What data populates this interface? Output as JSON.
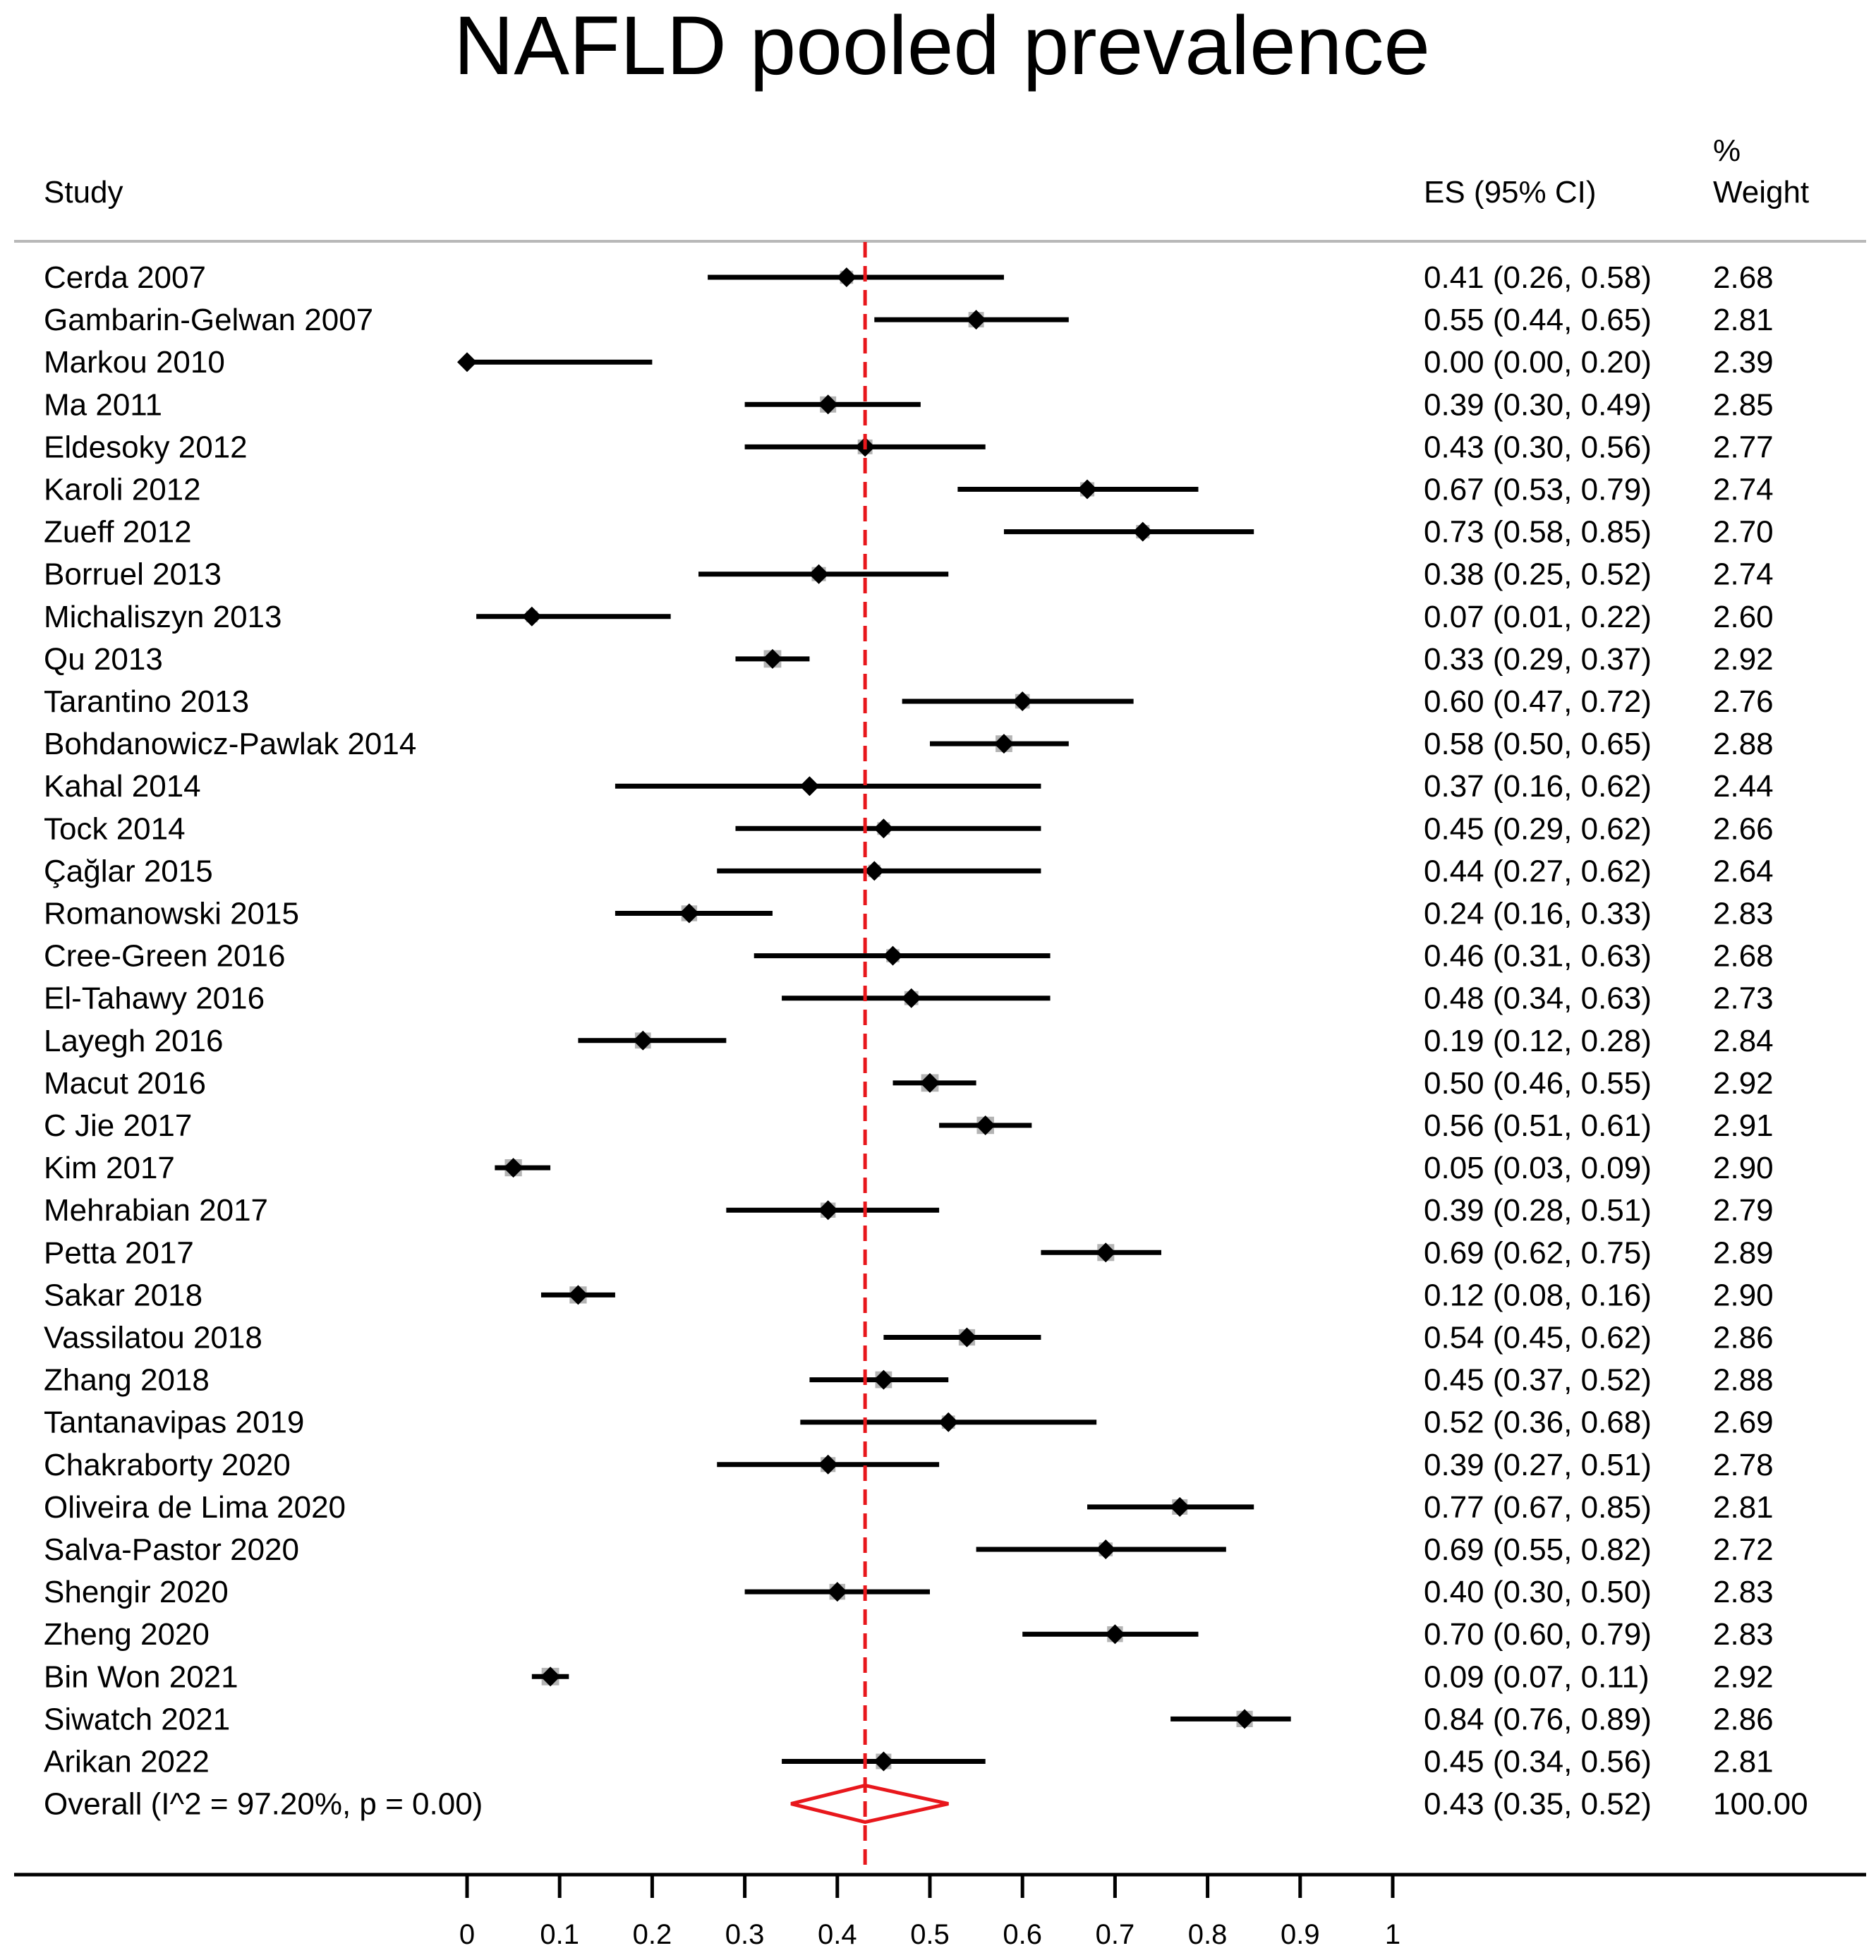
{
  "chart_data": {
    "type": "forest",
    "title": "NAFLD pooled prevalence",
    "columns": {
      "study": "Study",
      "es": "ES (95% CI)",
      "weight_top": "%",
      "weight": "Weight"
    },
    "studies": [
      {
        "name": "Cerda 2007",
        "es": 0.41,
        "lo": 0.26,
        "hi": 0.58,
        "es_text": "0.41 (0.26, 0.58)",
        "weight": 2.68,
        "weight_text": "2.68"
      },
      {
        "name": "Gambarin-Gelwan 2007",
        "es": 0.55,
        "lo": 0.44,
        "hi": 0.65,
        "es_text": "0.55 (0.44, 0.65)",
        "weight": 2.81,
        "weight_text": "2.81"
      },
      {
        "name": "Markou 2010",
        "es": 0.0,
        "lo": 0.0,
        "hi": 0.2,
        "es_text": "0.00 (0.00, 0.20)",
        "weight": 2.39,
        "weight_text": "2.39"
      },
      {
        "name": "Ma 2011",
        "es": 0.39,
        "lo": 0.3,
        "hi": 0.49,
        "es_text": "0.39 (0.30, 0.49)",
        "weight": 2.85,
        "weight_text": "2.85"
      },
      {
        "name": "Eldesoky 2012",
        "es": 0.43,
        "lo": 0.3,
        "hi": 0.56,
        "es_text": "0.43 (0.30, 0.56)",
        "weight": 2.77,
        "weight_text": "2.77"
      },
      {
        "name": "Karoli 2012",
        "es": 0.67,
        "lo": 0.53,
        "hi": 0.79,
        "es_text": "0.67 (0.53, 0.79)",
        "weight": 2.74,
        "weight_text": "2.74"
      },
      {
        "name": "Zueff 2012",
        "es": 0.73,
        "lo": 0.58,
        "hi": 0.85,
        "es_text": "0.73 (0.58, 0.85)",
        "weight": 2.7,
        "weight_text": "2.70"
      },
      {
        "name": "Borruel 2013",
        "es": 0.38,
        "lo": 0.25,
        "hi": 0.52,
        "es_text": "0.38 (0.25, 0.52)",
        "weight": 2.74,
        "weight_text": "2.74"
      },
      {
        "name": "Michaliszyn 2013",
        "es": 0.07,
        "lo": 0.01,
        "hi": 0.22,
        "es_text": "0.07 (0.01, 0.22)",
        "weight": 2.6,
        "weight_text": "2.60"
      },
      {
        "name": "Qu 2013",
        "es": 0.33,
        "lo": 0.29,
        "hi": 0.37,
        "es_text": "0.33 (0.29, 0.37)",
        "weight": 2.92,
        "weight_text": "2.92"
      },
      {
        "name": "Tarantino 2013",
        "es": 0.6,
        "lo": 0.47,
        "hi": 0.72,
        "es_text": "0.60 (0.47, 0.72)",
        "weight": 2.76,
        "weight_text": "2.76"
      },
      {
        "name": "Bohdanowicz-Pawlak 2014",
        "es": 0.58,
        "lo": 0.5,
        "hi": 0.65,
        "es_text": "0.58 (0.50, 0.65)",
        "weight": 2.88,
        "weight_text": "2.88"
      },
      {
        "name": "Kahal 2014",
        "es": 0.37,
        "lo": 0.16,
        "hi": 0.62,
        "es_text": "0.37 (0.16, 0.62)",
        "weight": 2.44,
        "weight_text": "2.44"
      },
      {
        "name": "Tock 2014",
        "es": 0.45,
        "lo": 0.29,
        "hi": 0.62,
        "es_text": "0.45 (0.29, 0.62)",
        "weight": 2.66,
        "weight_text": "2.66"
      },
      {
        "name": "Çağlar 2015",
        "es": 0.44,
        "lo": 0.27,
        "hi": 0.62,
        "es_text": "0.44 (0.27, 0.62)",
        "weight": 2.64,
        "weight_text": "2.64"
      },
      {
        "name": "Romanowski 2015",
        "es": 0.24,
        "lo": 0.16,
        "hi": 0.33,
        "es_text": "0.24 (0.16, 0.33)",
        "weight": 2.83,
        "weight_text": "2.83"
      },
      {
        "name": "Cree-Green 2016",
        "es": 0.46,
        "lo": 0.31,
        "hi": 0.63,
        "es_text": "0.46 (0.31, 0.63)",
        "weight": 2.68,
        "weight_text": "2.68"
      },
      {
        "name": "El-Tahawy 2016",
        "es": 0.48,
        "lo": 0.34,
        "hi": 0.63,
        "es_text": "0.48 (0.34, 0.63)",
        "weight": 2.73,
        "weight_text": "2.73"
      },
      {
        "name": "Layegh 2016",
        "es": 0.19,
        "lo": 0.12,
        "hi": 0.28,
        "es_text": "0.19 (0.12, 0.28)",
        "weight": 2.84,
        "weight_text": "2.84"
      },
      {
        "name": "Macut 2016",
        "es": 0.5,
        "lo": 0.46,
        "hi": 0.55,
        "es_text": "0.50 (0.46, 0.55)",
        "weight": 2.92,
        "weight_text": "2.92"
      },
      {
        "name": "C Jie 2017",
        "es": 0.56,
        "lo": 0.51,
        "hi": 0.61,
        "es_text": "0.56 (0.51, 0.61)",
        "weight": 2.91,
        "weight_text": "2.91"
      },
      {
        "name": "Kim 2017",
        "es": 0.05,
        "lo": 0.03,
        "hi": 0.09,
        "es_text": "0.05 (0.03, 0.09)",
        "weight": 2.9,
        "weight_text": "2.90"
      },
      {
        "name": "Mehrabian 2017",
        "es": 0.39,
        "lo": 0.28,
        "hi": 0.51,
        "es_text": "0.39 (0.28, 0.51)",
        "weight": 2.79,
        "weight_text": "2.79"
      },
      {
        "name": "Petta 2017",
        "es": 0.69,
        "lo": 0.62,
        "hi": 0.75,
        "es_text": "0.69 (0.62, 0.75)",
        "weight": 2.89,
        "weight_text": "2.89"
      },
      {
        "name": "Sakar 2018",
        "es": 0.12,
        "lo": 0.08,
        "hi": 0.16,
        "es_text": "0.12 (0.08, 0.16)",
        "weight": 2.9,
        "weight_text": "2.90"
      },
      {
        "name": "Vassilatou 2018",
        "es": 0.54,
        "lo": 0.45,
        "hi": 0.62,
        "es_text": "0.54 (0.45, 0.62)",
        "weight": 2.86,
        "weight_text": "2.86"
      },
      {
        "name": "Zhang 2018",
        "es": 0.45,
        "lo": 0.37,
        "hi": 0.52,
        "es_text": "0.45 (0.37, 0.52)",
        "weight": 2.88,
        "weight_text": "2.88"
      },
      {
        "name": "Tantanavipas 2019",
        "es": 0.52,
        "lo": 0.36,
        "hi": 0.68,
        "es_text": "0.52 (0.36, 0.68)",
        "weight": 2.69,
        "weight_text": "2.69"
      },
      {
        "name": "Chakraborty 2020",
        "es": 0.39,
        "lo": 0.27,
        "hi": 0.51,
        "es_text": "0.39 (0.27, 0.51)",
        "weight": 2.78,
        "weight_text": "2.78"
      },
      {
        "name": "Oliveira de Lima 2020",
        "es": 0.77,
        "lo": 0.67,
        "hi": 0.85,
        "es_text": "0.77 (0.67, 0.85)",
        "weight": 2.81,
        "weight_text": "2.81"
      },
      {
        "name": "Salva-Pastor 2020",
        "es": 0.69,
        "lo": 0.55,
        "hi": 0.82,
        "es_text": "0.69 (0.55, 0.82)",
        "weight": 2.72,
        "weight_text": "2.72"
      },
      {
        "name": "Shengir 2020",
        "es": 0.4,
        "lo": 0.3,
        "hi": 0.5,
        "es_text": "0.40 (0.30, 0.50)",
        "weight": 2.83,
        "weight_text": "2.83"
      },
      {
        "name": "Zheng 2020",
        "es": 0.7,
        "lo": 0.6,
        "hi": 0.79,
        "es_text": "0.70 (0.60, 0.79)",
        "weight": 2.83,
        "weight_text": "2.83"
      },
      {
        "name": "Bin Won 2021",
        "es": 0.09,
        "lo": 0.07,
        "hi": 0.11,
        "es_text": "0.09 (0.07, 0.11)",
        "weight": 2.92,
        "weight_text": "2.92"
      },
      {
        "name": "Siwatch 2021",
        "es": 0.84,
        "lo": 0.76,
        "hi": 0.89,
        "es_text": "0.84 (0.76, 0.89)",
        "weight": 2.86,
        "weight_text": "2.86"
      },
      {
        "name": "Arikan 2022",
        "es": 0.45,
        "lo": 0.34,
        "hi": 0.56,
        "es_text": "0.45 (0.34, 0.56)",
        "weight": 2.81,
        "weight_text": "2.81"
      }
    ],
    "overall": {
      "name": "Overall  (I^2 = 97.20%, p = 0.00)",
      "es": 0.43,
      "lo": 0.35,
      "hi": 0.52,
      "es_text": "0.43 (0.35, 0.52)",
      "weight_text": "100.00"
    },
    "xaxis": {
      "ticks": [
        0,
        0.1,
        0.2,
        0.3,
        0.4,
        0.5,
        0.6,
        0.7,
        0.8,
        0.9,
        1
      ],
      "tick_labels": [
        "0",
        "0.1",
        "0.2",
        "0.3",
        "0.4",
        "0.5",
        "0.6",
        "0.7",
        "0.8",
        "0.9",
        "1"
      ],
      "range": [
        0,
        1
      ]
    },
    "reference_line": 0.43,
    "colors": {
      "marker": "#000000",
      "weight_box": "#b4b4b4",
      "ci_line": "#000000",
      "overall": "#e8171c",
      "reference": "#e8171c",
      "rule": "#b8b8b8"
    }
  }
}
